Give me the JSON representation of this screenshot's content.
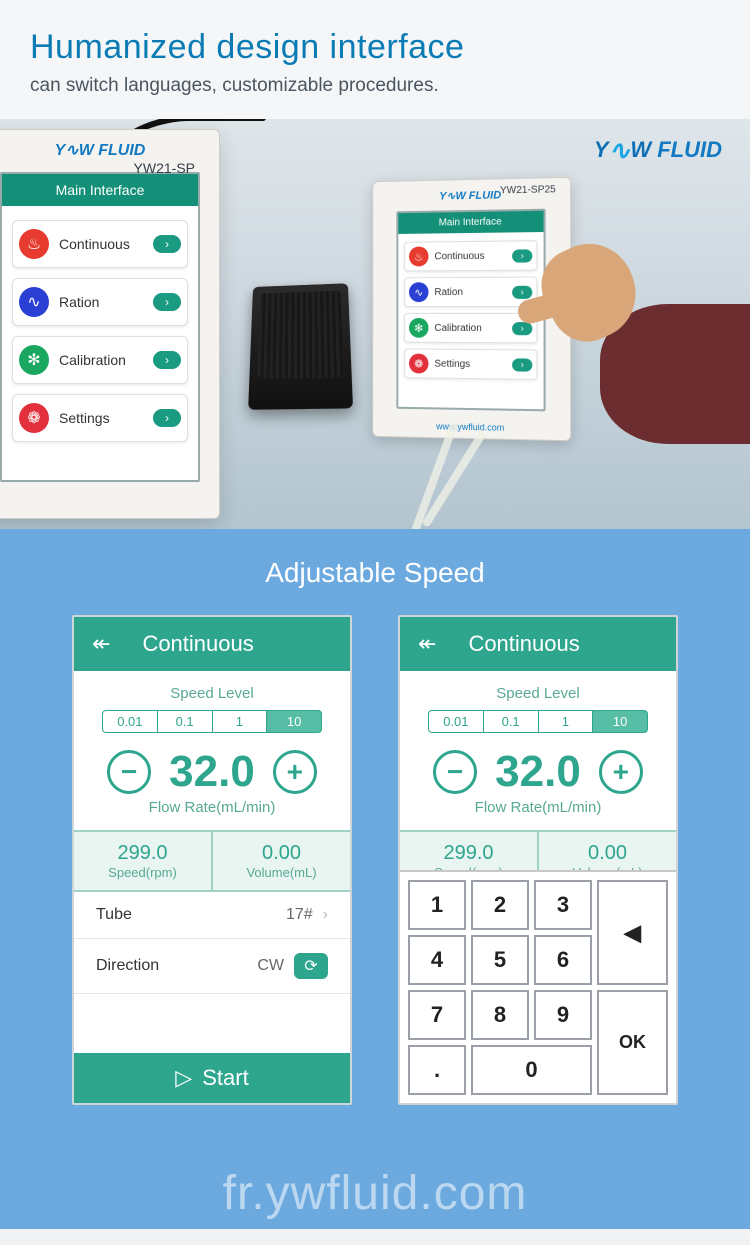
{
  "header": {
    "title": "Humanized design interface",
    "subtitle": "can switch languages, customizable procedures."
  },
  "brand": {
    "name": "YW FLUID",
    "model": "YW21-SP25",
    "model_short": "YW21-SP",
    "url": "www.ywfluid.com"
  },
  "main_interface": {
    "title": "Main Interface",
    "items": [
      {
        "label": "Continuous",
        "color": "#e63b2e",
        "glyph": "♨"
      },
      {
        "label": "Ration",
        "color": "#2a3fd4",
        "glyph": "∿"
      },
      {
        "label": "Calibration",
        "color": "#1aa860",
        "glyph": "✻"
      },
      {
        "label": "Settings",
        "color": "#e2303d",
        "glyph": "❁"
      }
    ]
  },
  "section2_title": "Adjustable Speed",
  "continuous": {
    "title": "Continuous",
    "speed_level_label": "Speed Level",
    "tabs": [
      "0.01",
      "0.1",
      "1",
      "10"
    ],
    "active_tab": 3,
    "flow_value": "32.0",
    "flow_label": "Flow Rate(mL/min)",
    "speed_value": "299.0",
    "speed_label": "Speed(rpm)",
    "volume_value": "0.00",
    "volume_label": "Volume(mL)",
    "tube_label": "Tube",
    "tube_value": "17#",
    "direction_label": "Direction",
    "direction_value": "CW",
    "start_label": "Start"
  },
  "keypad": {
    "keys": [
      "1",
      "2",
      "3",
      "4",
      "5",
      "6",
      "7",
      "8",
      "9",
      ".",
      "0"
    ],
    "backspace": "◀",
    "ok": "OK"
  },
  "watermark": "fr.ywfluid.com",
  "colors": {
    "teal": "#2ea58d",
    "teal_light": "#57bda5",
    "blue_bg": "#6ba9df",
    "header_title": "#0b7bb5"
  }
}
